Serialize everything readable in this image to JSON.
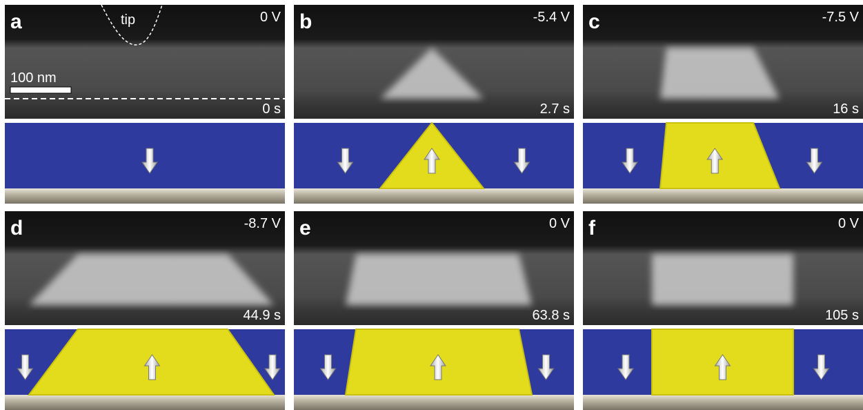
{
  "panels": [
    {
      "label": "a",
      "voltage": "0 V",
      "time": "0 s",
      "tip": "tip",
      "scale_bar": "100 nm"
    },
    {
      "label": "b",
      "voltage": "-5.4 V",
      "time": "2.7 s"
    },
    {
      "label": "c",
      "voltage": "-7.5 V",
      "time": "16 s"
    },
    {
      "label": "d",
      "voltage": "-8.7 V",
      "time": "44.9 s"
    },
    {
      "label": "e",
      "voltage": "0 V",
      "time": "63.8 s"
    },
    {
      "label": "f",
      "voltage": "0 V",
      "time": "105 s"
    }
  ]
}
